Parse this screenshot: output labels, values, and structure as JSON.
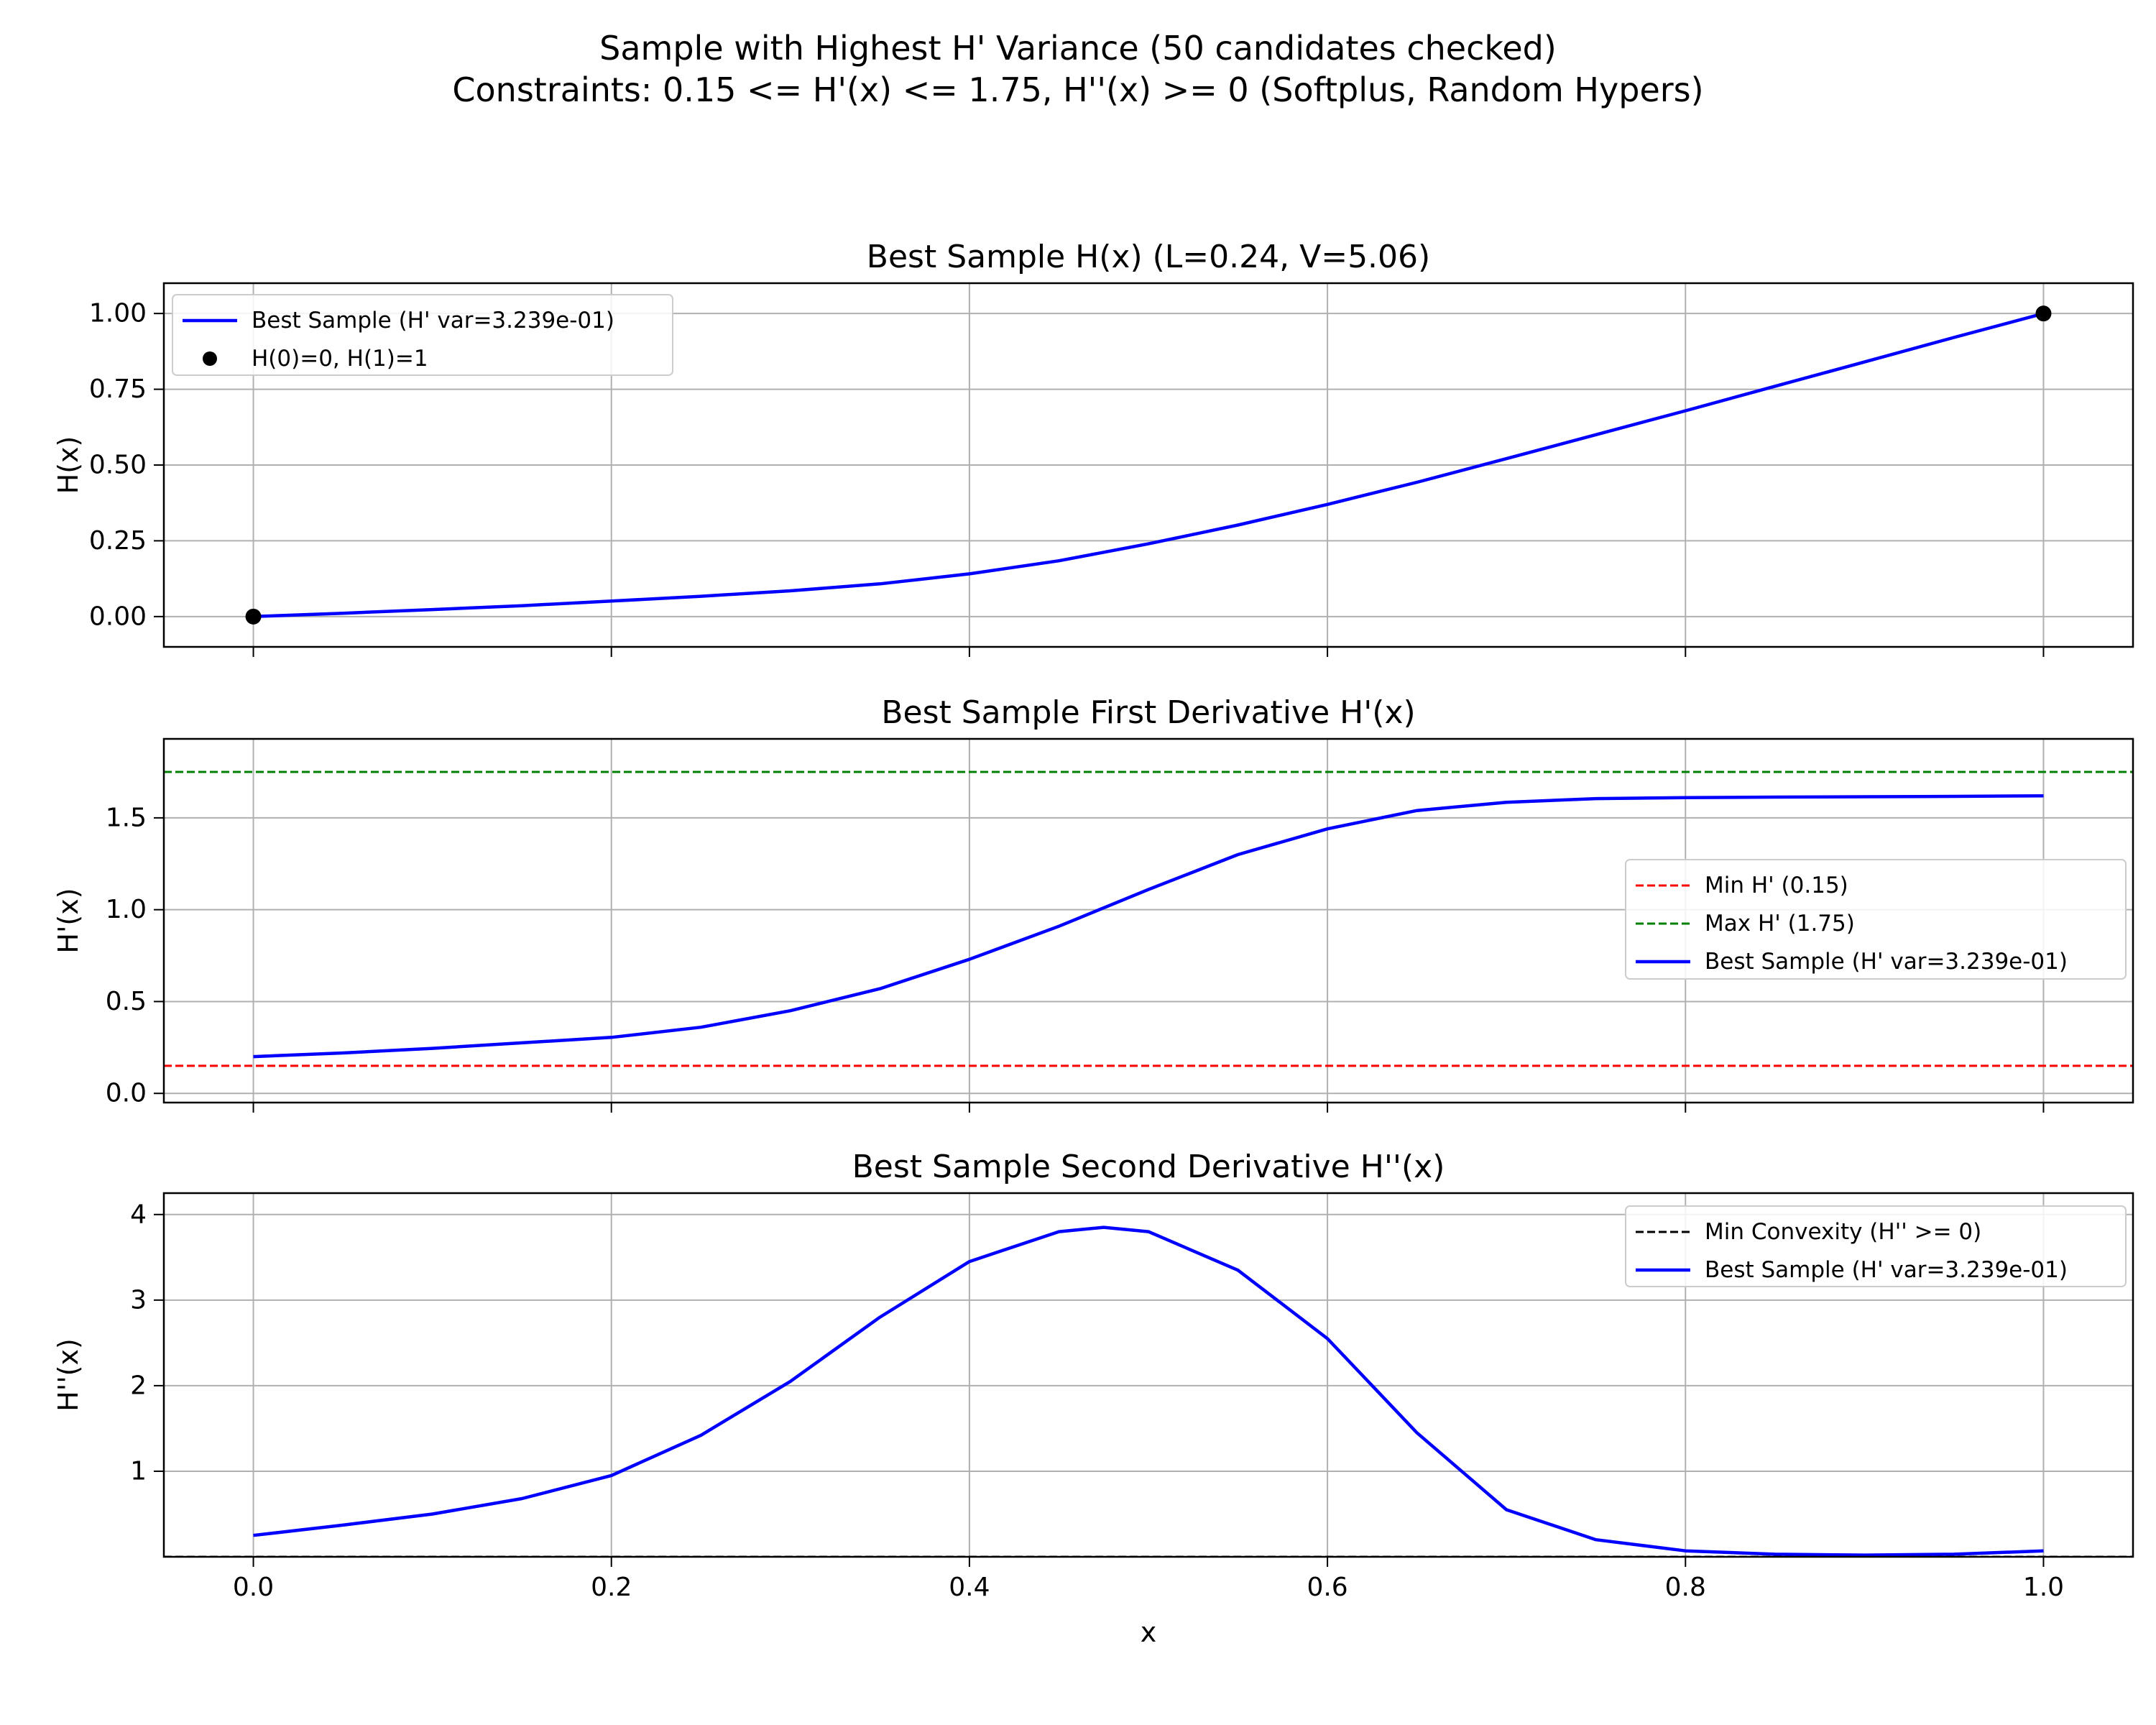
{
  "suptitle": {
    "line1": "Sample with Highest H' Variance (50 candidates checked)",
    "line2": "Constraints: 0.15 <= H'(x) <= 1.75, H''(x) >= 0 (Softplus, Random Hypers)"
  },
  "colors": {
    "curve": "#0000ff",
    "min_line": "#ff0000",
    "max_line": "#008000",
    "convexity_line": "#000000",
    "endpoints": "#000000",
    "grid": "#b0b0b0"
  },
  "chart_data": [
    {
      "type": "line",
      "title": "Best Sample H(x) (L=0.24, V=5.06)",
      "xlabel": "",
      "ylabel": "H(x)",
      "xlim": [
        -0.05,
        1.05
      ],
      "ylim": [
        -0.1,
        1.1
      ],
      "yticks": [
        0.0,
        0.25,
        0.5,
        0.75,
        1.0
      ],
      "ytick_labels": [
        "0.00",
        "0.25",
        "0.50",
        "0.75",
        "1.00"
      ],
      "grid": true,
      "legend_position": "upper-left",
      "series": [
        {
          "name": "Best Sample (H' var=3.239e-01)",
          "style": "line",
          "color": "#0000ff",
          "x": [
            0,
            0.05,
            0.1,
            0.15,
            0.2,
            0.25,
            0.3,
            0.35,
            0.4,
            0.45,
            0.5,
            0.55,
            0.6,
            0.65,
            0.7,
            0.75,
            0.8,
            0.85,
            0.9,
            0.95,
            1.0
          ],
          "y": [
            0,
            0.011,
            0.023,
            0.036,
            0.051,
            0.067,
            0.085,
            0.108,
            0.141,
            0.184,
            0.24,
            0.302,
            0.37,
            0.443,
            0.521,
            0.6,
            0.679,
            0.76,
            0.84,
            0.921,
            1.0
          ]
        },
        {
          "name": "H(0)=0, H(1)=1",
          "style": "markers",
          "color": "#000000",
          "x": [
            0,
            1
          ],
          "y": [
            0,
            1
          ]
        }
      ]
    },
    {
      "type": "line",
      "title": "Best Sample First Derivative H'(x)",
      "xlabel": "",
      "ylabel": "H'(x)",
      "xlim": [
        -0.05,
        1.05
      ],
      "ylim": [
        -0.05,
        1.93
      ],
      "yticks": [
        0.0,
        0.5,
        1.0,
        1.5
      ],
      "ytick_labels": [
        "0.0",
        "0.5",
        "1.0",
        "1.5"
      ],
      "grid": true,
      "legend_position": "center-right",
      "series": [
        {
          "name": "Min H' (0.15)",
          "style": "hline",
          "dash": true,
          "color": "#ff0000",
          "y": 0.15
        },
        {
          "name": "Max H' (1.75)",
          "style": "hline",
          "dash": true,
          "color": "#008000",
          "y": 1.75
        },
        {
          "name": "Best Sample (H' var=3.239e-01)",
          "style": "line",
          "color": "#0000ff",
          "x": [
            0,
            0.05,
            0.1,
            0.15,
            0.2,
            0.25,
            0.3,
            0.35,
            0.4,
            0.45,
            0.5,
            0.55,
            0.6,
            0.65,
            0.7,
            0.75,
            0.8,
            0.85,
            0.9,
            0.95,
            1.0
          ],
          "y": [
            0.2,
            0.22,
            0.245,
            0.275,
            0.305,
            0.36,
            0.45,
            0.57,
            0.73,
            0.91,
            1.11,
            1.3,
            1.44,
            1.54,
            1.585,
            1.605,
            1.61,
            1.613,
            1.615,
            1.617,
            1.62
          ]
        }
      ]
    },
    {
      "type": "line",
      "title": "Best Sample Second Derivative H''(x)",
      "xlabel": "x",
      "ylabel": "H''(x)",
      "xlim": [
        -0.05,
        1.05
      ],
      "ylim": [
        0.0,
        4.25
      ],
      "yticks": [
        1,
        2,
        3,
        4
      ],
      "ytick_labels": [
        "1",
        "2",
        "3",
        "4"
      ],
      "xticks": [
        0.0,
        0.2,
        0.4,
        0.6,
        0.8,
        1.0
      ],
      "xtick_labels": [
        "0.0",
        "0.2",
        "0.4",
        "0.6",
        "0.8",
        "1.0"
      ],
      "grid": true,
      "legend_position": "upper-right",
      "series": [
        {
          "name": "Min Convexity (H'' >= 0)",
          "style": "hline",
          "dash": true,
          "color": "#000000",
          "y": 0
        },
        {
          "name": "Best Sample (H' var=3.239e-01)",
          "style": "line",
          "color": "#0000ff",
          "x": [
            0,
            0.05,
            0.1,
            0.15,
            0.2,
            0.25,
            0.3,
            0.35,
            0.4,
            0.45,
            0.475,
            0.5,
            0.55,
            0.6,
            0.65,
            0.7,
            0.75,
            0.8,
            0.85,
            0.9,
            0.95,
            1.0
          ],
          "y": [
            0.25,
            0.37,
            0.5,
            0.68,
            0.95,
            1.42,
            2.05,
            2.8,
            3.45,
            3.8,
            3.85,
            3.8,
            3.35,
            2.55,
            1.45,
            0.55,
            0.2,
            0.07,
            0.03,
            0.02,
            0.03,
            0.07
          ]
        }
      ]
    }
  ]
}
